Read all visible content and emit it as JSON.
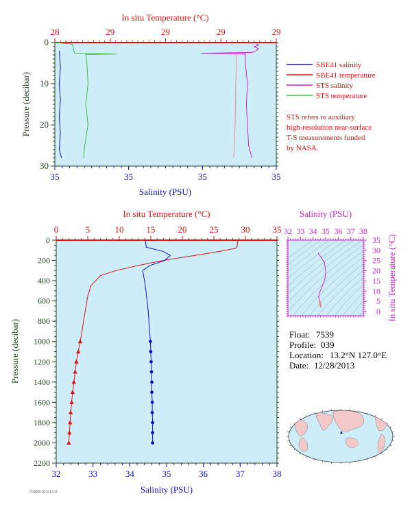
{
  "colors": {
    "plot_bg": "#cdeef8",
    "red": "#dd1111",
    "blue": "#1010c8",
    "magenta": "#cc22cc",
    "green": "#44bb44",
    "axis_dark": "#224422",
    "pink": "#ee8888"
  },
  "top_chart": {
    "top_axis_title": "In situ Temperature (°C)",
    "top_ticks": [
      "28",
      "29",
      "29",
      "29",
      "29"
    ],
    "bottom_ticks": [
      "35",
      "35",
      "35",
      "35"
    ],
    "bottom_axis_title": "Salinity (PSU)",
    "left_axis_title": "Pressure (decibar)",
    "left_ticks": [
      "0",
      "10",
      "20",
      "30"
    ]
  },
  "legend": {
    "items": [
      {
        "label": "SBE41 salinity",
        "color": "blue"
      },
      {
        "label": "SBE41 temperature",
        "color": "red"
      },
      {
        "label": "STS salinity",
        "color": "magenta"
      },
      {
        "label": "STS temperature",
        "color": "green"
      }
    ],
    "note": [
      "STS refers to auxiliary",
      "high-resolution near-surface",
      "T-S measurements funded",
      "by NASA."
    ]
  },
  "main_chart": {
    "top_axis_title": "In situ Temperature (°C)",
    "top_ticks": [
      "0",
      "5",
      "10",
      "15",
      "20",
      "25",
      "30",
      "35"
    ],
    "bottom_ticks": [
      "32",
      "33",
      "34",
      "35",
      "36",
      "37",
      "38"
    ],
    "bottom_axis_title": "Salinity (PSU)",
    "left_axis_title": "Pressure (decibar)",
    "left_ticks": [
      "0",
      "200",
      "400",
      "600",
      "800",
      "1000",
      "1200",
      "1400",
      "1600",
      "1800",
      "2000",
      "2200"
    ]
  },
  "ts_chart": {
    "top_axis_title": "Salinity (PSU)",
    "top_ticks": [
      "32",
      "33",
      "34",
      "35",
      "36",
      "37",
      "38"
    ],
    "right_ticks": [
      "35",
      "30",
      "25",
      "20",
      "15",
      "10",
      "5",
      "0"
    ],
    "right_axis_title": "In situ Temperature (°C)"
  },
  "info": {
    "float_label": "Float:",
    "float_value": "7539",
    "profile_label": "Profile:",
    "profile_value": "039",
    "location_label": "Location:",
    "location_value": "13.2°N  127.0°E",
    "date_label": "Date:",
    "date_value": "12/28/2013"
  },
  "footer_code": "7539039 2013/12/31",
  "chart_data": [
    {
      "type": "line",
      "title": "",
      "xlabel": "Salinity (PSU)",
      "x2label": "In situ Temperature (°C)",
      "ylabel": "Pressure (decibar)",
      "ylim": [
        30,
        0
      ],
      "series": [
        {
          "name": "SBE41 salinity",
          "x_axis": "salinity",
          "points": [
            [
              0.02,
              2
            ],
            [
              0.025,
              6
            ],
            [
              0.02,
              10
            ],
            [
              0.025,
              14
            ],
            [
              0.02,
              18
            ],
            [
              0.025,
              22
            ],
            [
              0.02,
              26
            ],
            [
              0.03,
              28
            ]
          ]
        },
        {
          "name": "SBE41 temperature",
          "x_axis": "temperature",
          "points": [
            [
              0.0,
              0
            ],
            [
              1.0,
              0
            ]
          ]
        },
        {
          "name": "STS salinity",
          "x_axis": "salinity",
          "points": [
            [
              0.91,
              0.3
            ],
            [
              0.92,
              0.6
            ],
            [
              0.9,
              1
            ],
            [
              0.92,
              1.5
            ],
            [
              0.91,
              2
            ],
            [
              0.89,
              2.4
            ],
            [
              0.66,
              2.6
            ],
            [
              0.86,
              2.8
            ],
            [
              0.86,
              5
            ],
            [
              0.87,
              10
            ],
            [
              0.865,
              15
            ],
            [
              0.87,
              20
            ],
            [
              0.875,
              25
            ],
            [
              0.89,
              28
            ]
          ]
        },
        {
          "name": "STS temperature",
          "x_axis": "temperature",
          "points": [
            [
              0.0,
              0
            ],
            [
              0.08,
              0.4
            ],
            [
              0.085,
              2
            ],
            [
              0.09,
              2.6
            ],
            [
              0.28,
              2.8
            ],
            [
              0.14,
              2.9
            ],
            [
              0.145,
              5
            ],
            [
              0.15,
              10
            ],
            [
              0.14,
              15
            ],
            [
              0.15,
              20
            ],
            [
              0.135,
              25
            ],
            [
              0.13,
              28
            ]
          ]
        }
      ]
    },
    {
      "type": "line",
      "title": "",
      "xlabel": "Salinity (PSU)",
      "x2label": "In situ Temperature (°C)",
      "ylabel": "Pressure (decibar)",
      "xlim": [
        32,
        38
      ],
      "x2lim": [
        0,
        35
      ],
      "ylim": [
        2200,
        0
      ],
      "series": [
        {
          "name": "",
          "x_axis": "temperature",
          "points": [
            [
              28.8,
              0
            ],
            [
              28.7,
              60
            ],
            [
              28.5,
              80
            ],
            [
              26,
              110
            ],
            [
              22,
              150
            ],
            [
              17,
              200
            ],
            [
              13,
              250
            ],
            [
              9.5,
              300
            ],
            [
              7,
              350
            ],
            [
              5.5,
              450
            ],
            [
              5,
              550
            ],
            [
              4.6,
              700
            ],
            [
              4.2,
              850
            ],
            [
              4.1,
              900
            ],
            [
              3.8,
              1000
            ],
            [
              3.5,
              1100
            ],
            [
              3.2,
              1200
            ],
            [
              3.0,
              1300
            ],
            [
              2.8,
              1400
            ],
            [
              2.6,
              1500
            ],
            [
              2.45,
              1600
            ],
            [
              2.3,
              1700
            ],
            [
              2.2,
              1800
            ],
            [
              2.1,
              1900
            ],
            [
              2.0,
              2000
            ]
          ]
        },
        {
          "name": "",
          "x_axis": "salinity",
          "points": [
            [
              34.42,
              0
            ],
            [
              34.45,
              70
            ],
            [
              34.9,
              110
            ],
            [
              35.1,
              150
            ],
            [
              34.95,
              200
            ],
            [
              34.55,
              250
            ],
            [
              34.35,
              300
            ],
            [
              34.4,
              400
            ],
            [
              34.44,
              500
            ],
            [
              34.47,
              600
            ],
            [
              34.5,
              700
            ],
            [
              34.52,
              800
            ],
            [
              34.54,
              900
            ],
            [
              34.56,
              1000
            ],
            [
              34.57,
              1100
            ],
            [
              34.58,
              1200
            ],
            [
              34.59,
              1300
            ],
            [
              34.6,
              1400
            ],
            [
              34.6,
              1500
            ],
            [
              34.61,
              1600
            ],
            [
              34.61,
              1700
            ],
            [
              34.62,
              1800
            ],
            [
              34.62,
              1900
            ],
            [
              34.62,
              2000
            ]
          ]
        }
      ]
    },
    {
      "type": "line",
      "title": "",
      "xlabel": "Salinity (PSU)",
      "ylabel": "In situ Temperature (°C)",
      "xlim": [
        32,
        38
      ],
      "ylim": [
        -2,
        35
      ],
      "series": [
        {
          "name": "",
          "points": [
            [
              34.42,
              28.8
            ],
            [
              34.45,
              28
            ],
            [
              34.6,
              27
            ],
            [
              34.9,
              24
            ],
            [
              35.0,
              20
            ],
            [
              34.95,
              16
            ],
            [
              34.7,
              12
            ],
            [
              34.5,
              9
            ],
            [
              34.45,
              7
            ],
            [
              34.5,
              5.5
            ],
            [
              34.55,
              4.5
            ],
            [
              34.58,
              3.5
            ],
            [
              34.6,
              2.8
            ],
            [
              34.62,
              2.0
            ]
          ]
        }
      ]
    }
  ]
}
